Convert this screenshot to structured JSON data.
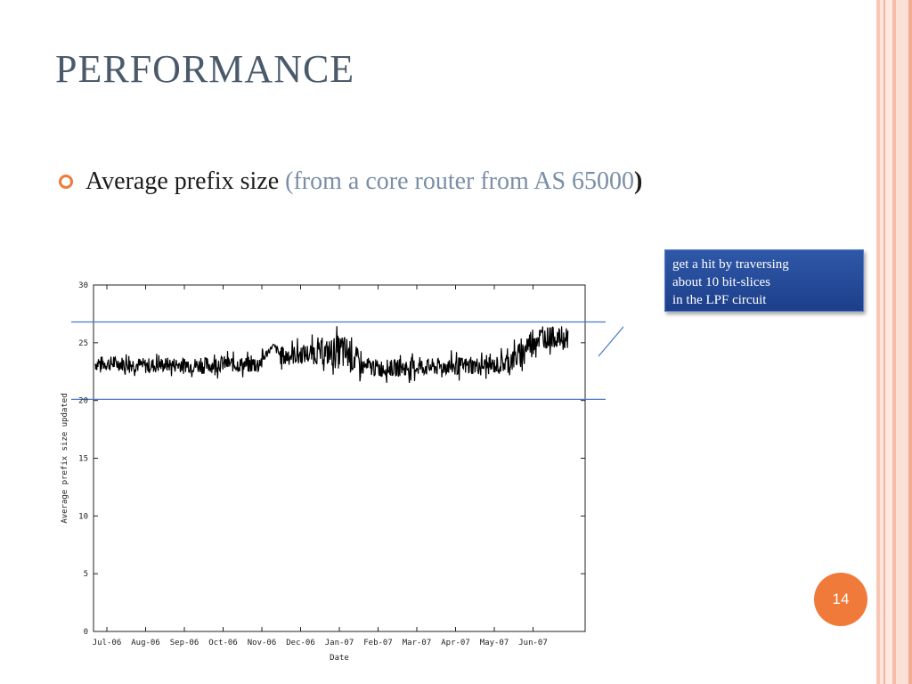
{
  "slide": {
    "title": "PERFORMANCE",
    "bullet": {
      "text": "Average prefix size",
      "paren_text": "(from a core router from AS 65000",
      "close_paren": ")"
    },
    "callout": {
      "lines": [
        "get a hit by traversing",
        "about 10 bit-slices",
        "in the LPF circuit"
      ]
    },
    "page_number": "14"
  },
  "colors": {
    "accent": "#f07a3a",
    "title": "#4b5a6b",
    "callout_bg": "#2a4f9e",
    "reference_line": "#4a78c8"
  },
  "chart_data": {
    "type": "line",
    "xlabel": "Date",
    "ylabel": "Average prefix size updated",
    "ylim": [
      0,
      30
    ],
    "yticks": [
      0,
      5,
      10,
      15,
      20,
      25,
      30
    ],
    "x_tick_labels": [
      "Jul-06",
      "Aug-06",
      "Sep-06",
      "Oct-06",
      "Nov-06",
      "Dec-06",
      "Jan-07",
      "Feb-07",
      "Mar-07",
      "Apr-07",
      "May-07",
      "Jun-07"
    ],
    "reference_lines": [
      26.8,
      20.1
    ],
    "series": [
      {
        "x_months": [
          0.0,
          0.5,
          1.0,
          1.5,
          2.0,
          2.5,
          3.0,
          3.5,
          3.9,
          4.3,
          4.5,
          5.0,
          5.5,
          6.0,
          6.3,
          6.6,
          7.0,
          7.5,
          8.0,
          8.5,
          9.0,
          9.5,
          10.0,
          10.4,
          10.7,
          11.0,
          11.5,
          11.8
        ],
        "mean": [
          23.2,
          23.2,
          23.0,
          23.1,
          23.1,
          23.0,
          23.2,
          23.1,
          23.1,
          24.8,
          23.8,
          24.0,
          24.1,
          24.2,
          24.0,
          22.9,
          22.8,
          22.8,
          22.9,
          22.9,
          23.0,
          23.0,
          23.0,
          23.4,
          24.0,
          25.4,
          25.5,
          25.3
        ],
        "low": [
          21.9,
          22.0,
          21.5,
          21.8,
          21.8,
          21.5,
          21.8,
          21.7,
          21.5,
          24.6,
          22.0,
          22.5,
          22.4,
          21.0,
          20.2,
          21.6,
          21.4,
          21.5,
          21.5,
          21.6,
          21.6,
          21.7,
          21.7,
          21.6,
          21.8,
          22.5,
          23.2,
          23.6
        ],
        "high": [
          24.3,
          24.3,
          24.0,
          24.2,
          24.2,
          24.1,
          24.3,
          24.2,
          24.3,
          25.0,
          25.0,
          25.6,
          26.0,
          26.5,
          26.2,
          24.4,
          24.2,
          24.2,
          24.3,
          24.3,
          24.4,
          24.5,
          24.4,
          25.2,
          26.0,
          26.5,
          26.5,
          26.4
        ]
      }
    ]
  }
}
